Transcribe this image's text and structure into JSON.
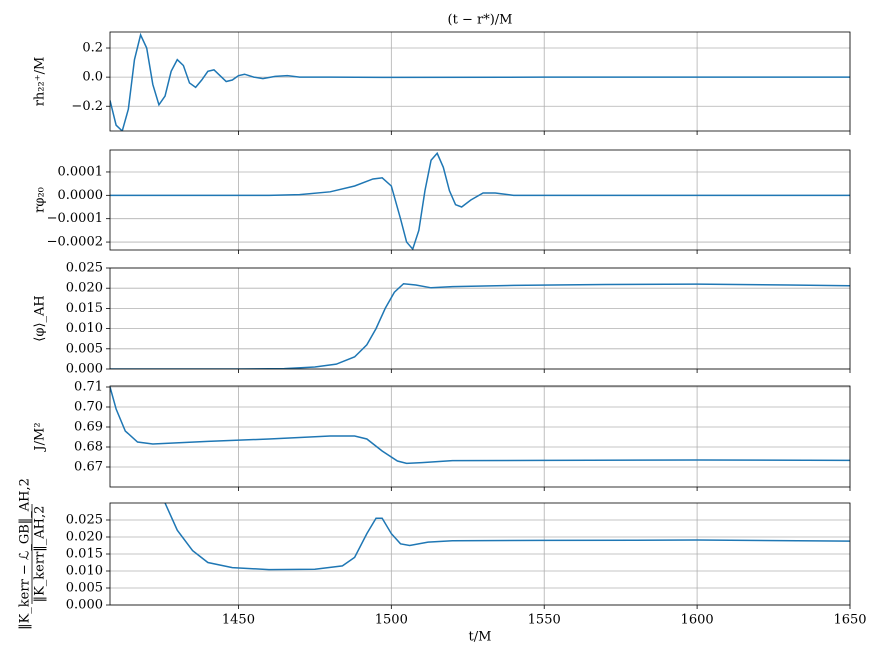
{
  "chart_data": [
    {
      "type": "line",
      "title": "(t − r*)/M",
      "ylabel": "rh₂₂⁺/M",
      "color": "#1f77b4",
      "grid": true,
      "xlim": [
        1408,
        1650
      ],
      "ylim": [
        -0.37,
        0.31
      ],
      "yticks": [
        0.2,
        {
          "value": 0,
          "label": "0.0"
        },
        {
          "value": -0.2,
          "label": "−0.2"
        }
      ],
      "x": [
        1408,
        1410,
        1412,
        1414,
        1416,
        1418,
        1420,
        1422,
        1424,
        1426,
        1428,
        1430,
        1432,
        1434,
        1436,
        1438,
        1440,
        1442,
        1444,
        1446,
        1448,
        1450,
        1452,
        1455,
        1458,
        1462,
        1466,
        1470,
        1480,
        1500,
        1550,
        1600,
        1650
      ],
      "values": [
        -0.16,
        -0.33,
        -0.37,
        -0.22,
        0.12,
        0.29,
        0.2,
        -0.05,
        -0.19,
        -0.13,
        0.04,
        0.12,
        0.08,
        -0.04,
        -0.07,
        -0.02,
        0.04,
        0.05,
        0.01,
        -0.03,
        -0.02,
        0.01,
        0.02,
        0.0,
        -0.01,
        0.005,
        0.01,
        0.0,
        0.0,
        -0.002,
        0.0,
        0.0,
        0.0
      ]
    },
    {
      "type": "line",
      "ylabel": "rφ₂₀",
      "color": "#1f77b4",
      "grid": true,
      "xlim": [
        1408,
        1650
      ],
      "ylim": [
        -0.000234,
        0.000194
      ],
      "yticks": [
        0.0001,
        {
          "value": 0,
          "label": "0.0000"
        },
        {
          "value": -0.0001,
          "label": "−0.0001"
        },
        {
          "value": -0.0002,
          "label": "−0.0002"
        }
      ],
      "x": [
        1408,
        1460,
        1470,
        1480,
        1488,
        1494,
        1497,
        1500,
        1503,
        1505,
        1507,
        1509,
        1511,
        1513,
        1515,
        1517,
        1519,
        1521,
        1523,
        1526,
        1530,
        1534,
        1540,
        1650
      ],
      "values": [
        0,
        0,
        3e-06,
        1.5e-05,
        4e-05,
        7e-05,
        7.5e-05,
        4e-05,
        -0.0001,
        -0.0002,
        -0.00023,
        -0.00015,
        2e-05,
        0.00015,
        0.00018,
        0.00012,
        2e-05,
        -4e-05,
        -5e-05,
        -2e-05,
        1e-05,
        1e-05,
        0,
        0
      ]
    },
    {
      "type": "line",
      "ylabel": "⟨φ⟩_AH",
      "color": "#1f77b4",
      "grid": true,
      "xlim": [
        1408,
        1650
      ],
      "ylim": [
        0,
        0.025
      ],
      "yticks": [
        {
          "value": 0,
          "label": "0.000"
        },
        0.005,
        {
          "value": 0.01,
          "label": "0.010"
        },
        0.015,
        {
          "value": 0.02,
          "label": "0.020"
        },
        0.025
      ],
      "x": [
        1408,
        1450,
        1465,
        1475,
        1482,
        1488,
        1492,
        1495,
        1498,
        1501,
        1504,
        1508,
        1513,
        1520,
        1540,
        1570,
        1600,
        1630,
        1650
      ],
      "values": [
        0,
        0,
        0.0001,
        0.0005,
        0.0012,
        0.003,
        0.006,
        0.01,
        0.015,
        0.019,
        0.0211,
        0.0208,
        0.0201,
        0.0204,
        0.0207,
        0.0209,
        0.021,
        0.0208,
        0.0206
      ]
    },
    {
      "type": "line",
      "ylabel": "J/M²",
      "color": "#1f77b4",
      "grid": true,
      "xlim": [
        1408,
        1650
      ],
      "ylim": [
        0.66,
        0.7105
      ],
      "yticks": [
        0.71,
        {
          "value": 0.7,
          "label": "0.70"
        },
        0.69,
        0.68,
        0.67
      ],
      "x": [
        1408,
        1410,
        1413,
        1417,
        1422,
        1440,
        1460,
        1480,
        1488,
        1492,
        1497,
        1502,
        1505,
        1510,
        1520,
        1550,
        1600,
        1650
      ],
      "values": [
        0.71,
        0.699,
        0.688,
        0.6825,
        0.6815,
        0.6828,
        0.684,
        0.6855,
        0.6855,
        0.684,
        0.678,
        0.673,
        0.6718,
        0.6722,
        0.6732,
        0.6733,
        0.6735,
        0.6733
      ]
    },
    {
      "type": "line",
      "ylabel": [
        "‖K_kerr − ℒ_GB‖_AH,2",
        "‖K_kerr‖_AH,2"
      ],
      "xlabel": "t/M",
      "color": "#1f77b4",
      "grid": true,
      "xlim": [
        1408,
        1650
      ],
      "ylim": [
        0,
        0.03
      ],
      "xticks": [
        1450,
        1500,
        1550,
        1600,
        1650
      ],
      "yticks": [
        {
          "value": 0,
          "label": "0.000"
        },
        0.005,
        {
          "value": 0.01,
          "label": "0.010"
        },
        0.015,
        {
          "value": 0.02,
          "label": "0.020"
        },
        0.025
      ],
      "x": [
        1426,
        1430,
        1435,
        1440,
        1448,
        1460,
        1475,
        1484,
        1488,
        1492,
        1495,
        1497,
        1500,
        1503,
        1506,
        1512,
        1520,
        1550,
        1600,
        1650
      ],
      "values": [
        0.03,
        0.022,
        0.016,
        0.0125,
        0.011,
        0.0104,
        0.0105,
        0.0115,
        0.014,
        0.021,
        0.0255,
        0.0255,
        0.021,
        0.018,
        0.0175,
        0.0185,
        0.0189,
        0.019,
        0.0191,
        0.0188
      ]
    }
  ]
}
